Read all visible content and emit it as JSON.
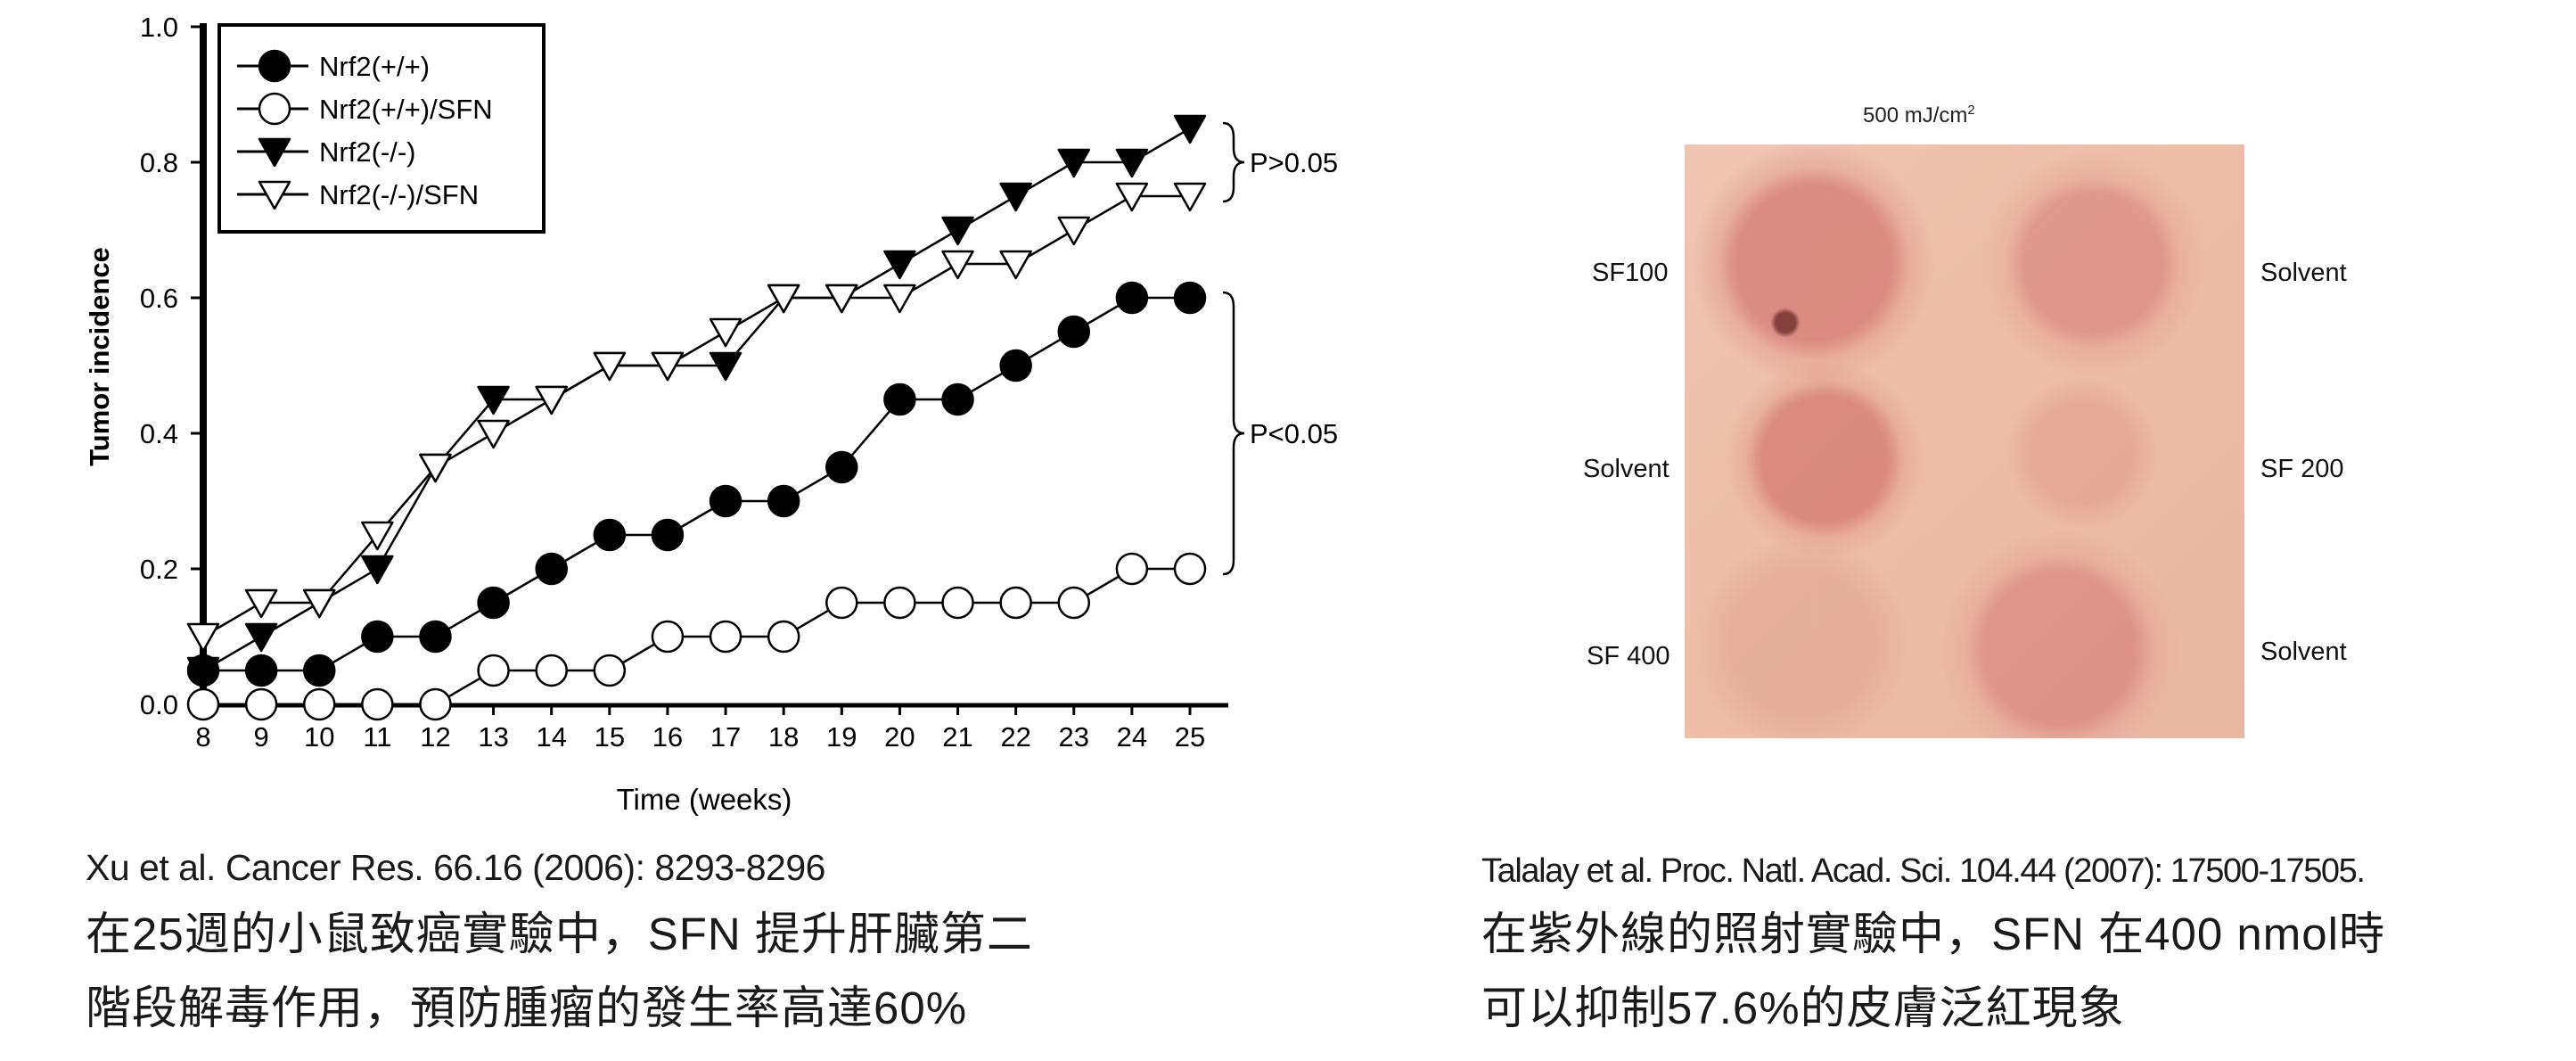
{
  "chart_data": {
    "type": "line",
    "title": "",
    "xlabel": "Time  (weeks)",
    "ylabel": "Tumor incidence",
    "x": [
      8,
      9,
      10,
      11,
      12,
      13,
      14,
      15,
      16,
      17,
      18,
      19,
      20,
      21,
      22,
      23,
      24,
      25
    ],
    "xlim": [
      8,
      25
    ],
    "ylim": [
      0,
      1.0
    ],
    "yticks": [
      "0.0",
      "0.2",
      "0.4",
      "0.6",
      "0.8",
      "1.0"
    ],
    "legend_position": "top-left",
    "series": [
      {
        "name": "Nrf2(+/+)",
        "marker": "filled-circle",
        "values": [
          0.05,
          0.05,
          0.05,
          0.1,
          0.1,
          0.15,
          0.2,
          0.25,
          0.25,
          0.3,
          0.3,
          0.35,
          0.45,
          0.45,
          0.5,
          0.55,
          0.6,
          0.6
        ]
      },
      {
        "name": "Nrf2(+/+)/SFN",
        "marker": "open-circle",
        "values": [
          0.0,
          0.0,
          0.0,
          0.0,
          0.0,
          0.05,
          0.05,
          0.05,
          0.1,
          0.1,
          0.1,
          0.15,
          0.15,
          0.15,
          0.15,
          0.15,
          0.2,
          0.2
        ]
      },
      {
        "name": "Nrf2(-/-)",
        "marker": "filled-triangle-down",
        "values": [
          0.05,
          0.1,
          0.15,
          0.2,
          0.35,
          0.45,
          0.45,
          0.5,
          0.5,
          0.5,
          0.6,
          0.6,
          0.65,
          0.7,
          0.75,
          0.8,
          0.8,
          0.85
        ]
      },
      {
        "name": "Nrf2(-/-)/SFN",
        "marker": "open-triangle-down",
        "values": [
          0.1,
          0.15,
          0.15,
          0.25,
          0.35,
          0.4,
          0.45,
          0.5,
          0.5,
          0.55,
          0.6,
          0.6,
          0.6,
          0.65,
          0.65,
          0.7,
          0.75,
          0.75
        ]
      }
    ],
    "annotations": [
      {
        "text": "P>0.05",
        "between": [
          "Nrf2(-/-)",
          "Nrf2(-/-)/SFN"
        ],
        "at_x": 25
      },
      {
        "text": "P<0.05",
        "between": [
          "Nrf2(+/+)",
          "Nrf2(+/+)/SFN"
        ],
        "at_x": 25
      }
    ]
  },
  "left_caption": {
    "citation": "Xu et al. Cancer Res. 66.16 (2006): 8293-8296",
    "line1": "在25週的小鼠致癌實驗中，SFN 提升肝臟第二",
    "line2": "階段解毒作用，預防腫瘤的發生率高達60%"
  },
  "photo": {
    "title_main": "500 mJ/cm",
    "title_sup": "2",
    "labels": {
      "left_top": "SF100",
      "right_top": "Solvent",
      "left_mid": "Solvent",
      "right_mid": "SF 200",
      "left_bottom": "SF 400",
      "right_bottom": "Solvent"
    }
  },
  "right_caption": {
    "citation": "Talalay et al. Proc. Natl. Acad. Sci. 104.44 (2007): 17500-17505.",
    "line1": "在紫外線的照射實驗中，SFN 在400 nmol時",
    "line2": "可以抑制57.6%的皮膚泛紅現象"
  }
}
